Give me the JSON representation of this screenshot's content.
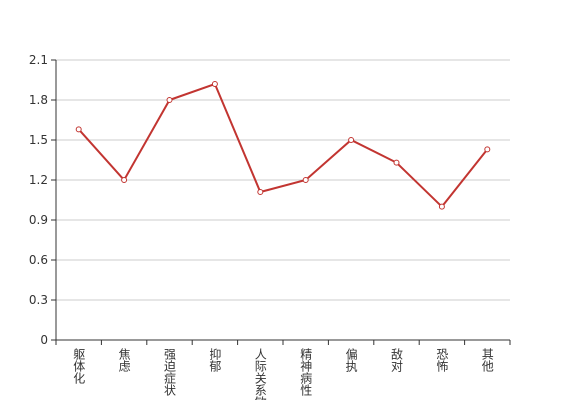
{
  "chart_data": {
    "type": "line",
    "categories": [
      "躯体化",
      "焦虑",
      "强迫症状",
      "抑郁",
      "人际关系敏感",
      "精神病性",
      "偏执",
      "敌对",
      "恐怖",
      "其他"
    ],
    "values": [
      1.58,
      1.2,
      1.8,
      1.92,
      1.11,
      1.2,
      1.5,
      1.33,
      1.0,
      1.43
    ],
    "color": "#c23531",
    "ylim": [
      0,
      2.1
    ],
    "yticks": [
      0,
      0.3,
      0.6,
      0.9,
      1.2,
      1.5,
      1.8,
      2.1
    ],
    "grid": true
  }
}
